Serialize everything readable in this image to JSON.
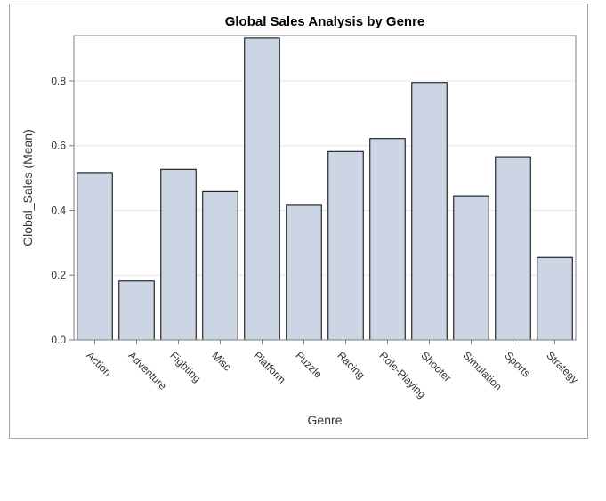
{
  "chart_data": {
    "type": "bar",
    "title": "Global Sales Analysis by Genre",
    "xlabel": "Genre",
    "ylabel": "Global_Sales (Mean)",
    "categories": [
      "Action",
      "Adventure",
      "Fighting",
      "Misc",
      "Platform",
      "Puzzle",
      "Racing",
      "Role-Playing",
      "Shooter",
      "Simulation",
      "Sports",
      "Strategy"
    ],
    "values": [
      0.517,
      0.182,
      0.527,
      0.458,
      0.932,
      0.418,
      0.582,
      0.622,
      0.795,
      0.445,
      0.566,
      0.255
    ],
    "ylim": [
      0,
      0.94
    ],
    "yticks": [
      0.0,
      0.2,
      0.4,
      0.6,
      0.8
    ],
    "ytick_labels": [
      "0.0",
      "0.2",
      "0.4",
      "0.6",
      "0.8"
    ],
    "grid": true,
    "legend": "none",
    "bar_color": "#cbd5e4",
    "bar_edge_color": "#000000"
  }
}
